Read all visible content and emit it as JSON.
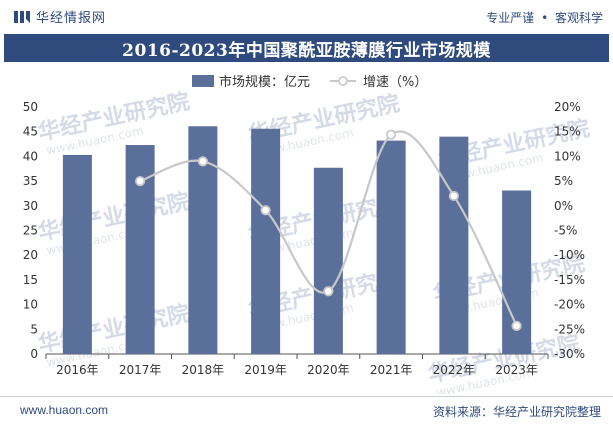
{
  "header": {
    "brand": "华经情报网",
    "slogan_left": "专业严谨",
    "slogan_dot": "•",
    "slogan_right": "客观科学"
  },
  "watermark": {
    "text": "华经产业研究院",
    "url": "www.huaon.com"
  },
  "footer": {
    "url": "www.huaon.com",
    "source": "资料来源：华经产业研究院整理"
  },
  "colors": {
    "bar": "#5b6f9b",
    "line": "#c8c8c8",
    "title_bg": "#2f4a7c"
  },
  "chart_data": {
    "type": "bar",
    "title": "2016-2023年中国聚酰亚胺薄膜行业市场规模",
    "categories": [
      "2016年",
      "2017年",
      "2018年",
      "2019年",
      "2020年",
      "2021年",
      "2022年",
      "2023年"
    ],
    "series": [
      {
        "name": "市场规模：亿元",
        "type": "bar",
        "axis": "left",
        "values": [
          40.3,
          42.3,
          46.1,
          45.6,
          37.7,
          43.2,
          44.0,
          33.1
        ]
      },
      {
        "name": "增速（%）",
        "type": "line",
        "axis": "right",
        "values": [
          null,
          5.0,
          9.0,
          -0.9,
          -17.3,
          14.4,
          2.0,
          -24.3
        ]
      }
    ],
    "left_axis": {
      "min": 0,
      "max": 50,
      "step": 5,
      "tick_labels": [
        "0",
        "5",
        "10",
        "15",
        "20",
        "25",
        "30",
        "35",
        "40",
        "45",
        "50"
      ]
    },
    "right_axis": {
      "min": -30,
      "max": 20,
      "step": 5,
      "tick_labels": [
        "-30%",
        "-25%",
        "-20%",
        "-15%",
        "-10%",
        "-5%",
        "0%",
        "5%",
        "10%",
        "15%",
        "20%"
      ]
    },
    "grid": false,
    "legend_position": "top-center"
  }
}
